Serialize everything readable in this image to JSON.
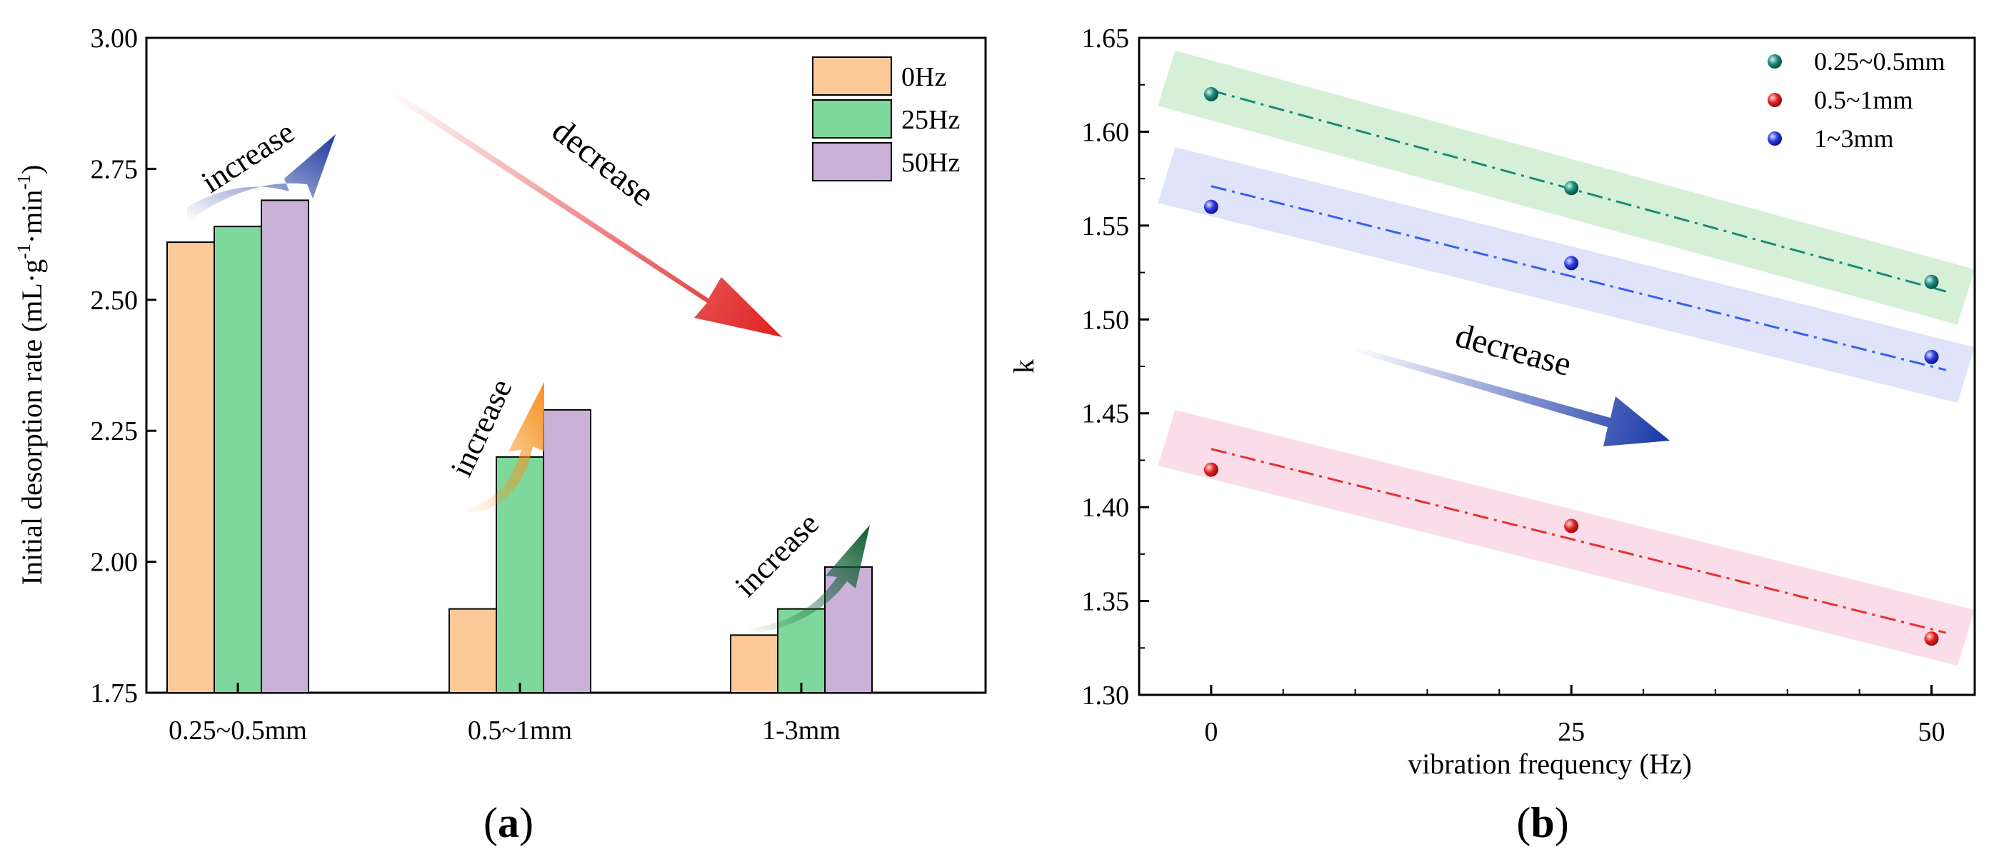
{
  "figure": {
    "panel_a_label": "a",
    "panel_b_label": "b"
  },
  "colors": {
    "hz0": "#fdc998",
    "hz25": "#7fd89b",
    "hz50": "#c9b1d8",
    "teal": "#1a8a7a",
    "red": "#e53030",
    "blue": "#3a5fe8",
    "band_teal": "#d6f0d8",
    "band_blue": "#e0e4fb",
    "band_red": "#fbdde9"
  },
  "chart_data": [
    {
      "type": "bar",
      "title": "",
      "xlabel": "",
      "ylabel_main": "Initial desorption rate (mL·g",
      "ylabel_sup1": "-1",
      "ylabel_mid": "·min",
      "ylabel_sup2": "-1",
      "ylabel_end": ")",
      "ylim": [
        1.75,
        3.0
      ],
      "yticks": [
        1.75,
        2.0,
        2.25,
        2.5,
        2.75,
        3.0
      ],
      "ytick_labels": [
        "1.75",
        "2.00",
        "2.25",
        "2.50",
        "2.75",
        "3.00"
      ],
      "categories": [
        "0.25~0.5mm",
        "0.5~1mm",
        "1-3mm"
      ],
      "series": [
        {
          "name": "0Hz",
          "values": [
            2.61,
            1.91,
            1.86
          ]
        },
        {
          "name": "25Hz",
          "values": [
            2.64,
            2.2,
            1.91
          ]
        },
        {
          "name": "50Hz",
          "values": [
            2.69,
            2.29,
            1.99
          ]
        }
      ],
      "legend_position": "top-right",
      "annotations": [
        "increase",
        "increase",
        "increase",
        "decrease"
      ]
    },
    {
      "type": "scatter",
      "title": "",
      "xlabel": "vibration frequency (Hz)",
      "ylabel": "k",
      "xlim": [
        -5,
        53
      ],
      "ylim": [
        1.3,
        1.65
      ],
      "xticks": [
        0,
        25,
        50
      ],
      "xtick_labels": [
        "0",
        "25",
        "50"
      ],
      "yticks": [
        1.3,
        1.35,
        1.4,
        1.45,
        1.5,
        1.55,
        1.6,
        1.65
      ],
      "ytick_labels": [
        "1.30",
        "1.35",
        "1.40",
        "1.45",
        "1.50",
        "1.55",
        "1.60",
        "1.65"
      ],
      "series": [
        {
          "name": "0.25~0.5mm",
          "x": [
            0,
            25,
            50
          ],
          "y": [
            1.62,
            1.57,
            1.52
          ],
          "fit": [
            1.622,
            1.517
          ]
        },
        {
          "name": "0.5~1mm",
          "x": [
            0,
            25,
            50
          ],
          "y": [
            1.42,
            1.39,
            1.33
          ],
          "fit": [
            1.431,
            1.335
          ]
        },
        {
          "name": "1~3mm",
          "x": [
            0,
            25,
            50
          ],
          "y": [
            1.56,
            1.53,
            1.48
          ],
          "fit": [
            1.571,
            1.475
          ]
        }
      ],
      "fit_range": [
        0,
        51
      ],
      "legend_position": "top-right",
      "annotations": [
        "decrease"
      ]
    }
  ]
}
